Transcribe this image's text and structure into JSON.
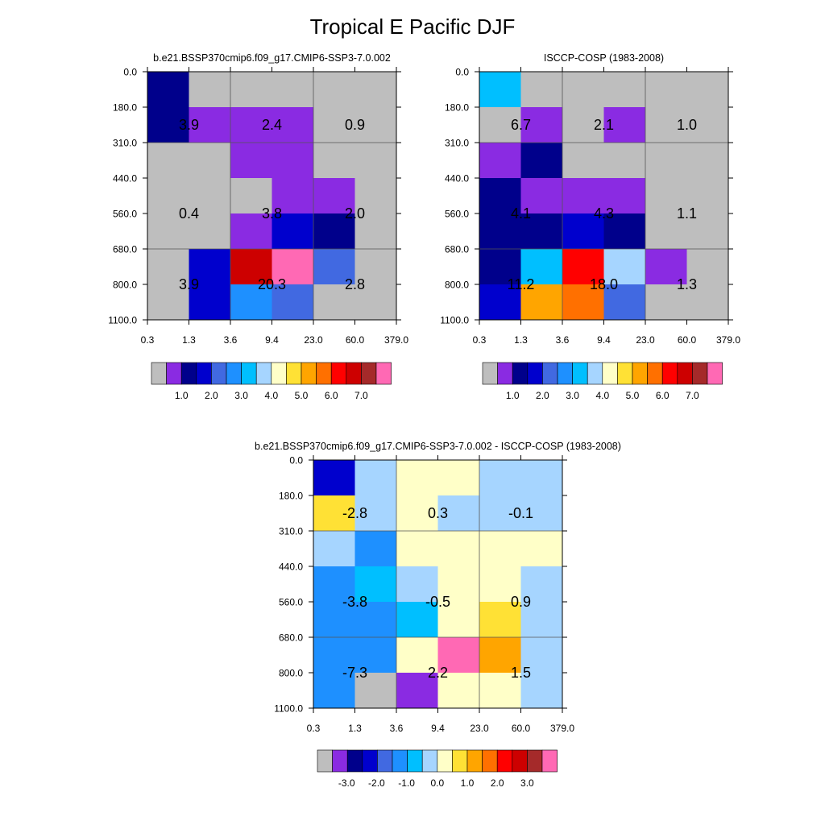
{
  "title": "Tropical E Pacific DJF",
  "palettes": {
    "abs": [
      "#BEBEBE",
      "#8A2BE2",
      "#00008B",
      "#0000CD",
      "#4169E1",
      "#1E90FF",
      "#00BFFF",
      "#A6D5FF",
      "#FFFFC8",
      "#FFE135",
      "#FFA500",
      "#FF7000",
      "#FF0000",
      "#CD0000",
      "#A52A2A",
      "#FF69B4"
    ],
    "diff": [
      "#BEBEBE",
      "#8A2BE2",
      "#00008B",
      "#0000CD",
      "#4169E1",
      "#1E90FF",
      "#00BFFF",
      "#A6D5FF",
      "#FFFFC8",
      "#FFE135",
      "#FFA500",
      "#FF7000",
      "#FF0000",
      "#CD0000",
      "#A52A2A",
      "#FF69B4"
    ]
  },
  "chart_data": [
    {
      "type": "heatmap",
      "title": "b.e21.BSSP370cmip6.f09_g17.CMIP6-SSP3-7.0.002",
      "xticks": [
        "0.3",
        "1.3",
        "3.6",
        "9.4",
        "23.0",
        "60.0",
        "379.0"
      ],
      "yticks": [
        "0.0",
        "180.0",
        "310.0",
        "440.0",
        "560.0",
        "680.0",
        "800.0",
        "1100.0"
      ],
      "palette": "abs",
      "cells": [
        [
          2,
          0,
          0,
          0,
          0,
          0
        ],
        [
          2,
          1,
          1,
          1,
          0,
          0
        ],
        [
          0,
          0,
          1,
          1,
          0,
          0
        ],
        [
          0,
          0,
          0,
          1,
          1,
          0
        ],
        [
          0,
          0,
          1,
          3,
          2,
          0
        ],
        [
          0,
          3,
          13,
          15,
          4,
          0
        ],
        [
          0,
          3,
          5,
          4,
          0,
          0
        ]
      ],
      "labels": [
        [
          "3.9",
          "2.4",
          "0.9"
        ],
        [
          "0.4",
          "3.8",
          "2.0"
        ],
        [
          "3.9",
          "20.3",
          "2.8"
        ]
      ],
      "colorbar_labels": [
        "1.0",
        "2.0",
        "3.0",
        "4.0",
        "5.0",
        "6.0",
        "7.0"
      ]
    },
    {
      "type": "heatmap",
      "title": "ISCCP-COSP (1983-2008)",
      "xticks": [
        "0.3",
        "1.3",
        "3.6",
        "9.4",
        "23.0",
        "60.0",
        "379.0"
      ],
      "yticks": [
        "0.0",
        "180.0",
        "310.0",
        "440.0",
        "560.0",
        "680.0",
        "800.0",
        "1100.0"
      ],
      "palette": "abs",
      "cells": [
        [
          6,
          0,
          0,
          0,
          0,
          0
        ],
        [
          0,
          1,
          0,
          1,
          0,
          0
        ],
        [
          1,
          2,
          0,
          0,
          0,
          0
        ],
        [
          2,
          1,
          1,
          1,
          0,
          0
        ],
        [
          2,
          2,
          3,
          2,
          0,
          0
        ],
        [
          2,
          6,
          12,
          7,
          1,
          0
        ],
        [
          3,
          10,
          11,
          4,
          0,
          0
        ]
      ],
      "labels": [
        [
          "6.7",
          "2.1",
          "1.0"
        ],
        [
          "4.1",
          "4.3",
          "1.1"
        ],
        [
          "11.2",
          "18.0",
          "1.3"
        ]
      ],
      "colorbar_labels": [
        "1.0",
        "2.0",
        "3.0",
        "4.0",
        "5.0",
        "6.0",
        "7.0"
      ]
    },
    {
      "type": "heatmap",
      "title": "b.e21.BSSP370cmip6.f09_g17.CMIP6-SSP3-7.0.002 - ISCCP-COSP (1983-2008)",
      "xticks": [
        "0.3",
        "1.3",
        "3.6",
        "9.4",
        "23.0",
        "60.0",
        "379.0"
      ],
      "yticks": [
        "0.0",
        "180.0",
        "310.0",
        "440.0",
        "560.0",
        "680.0",
        "800.0",
        "1100.0"
      ],
      "palette": "diff",
      "cells": [
        [
          3,
          7,
          8,
          8,
          7,
          7
        ],
        [
          9,
          7,
          8,
          7,
          7,
          7
        ],
        [
          7,
          5,
          8,
          8,
          8,
          8
        ],
        [
          5,
          6,
          7,
          8,
          8,
          7
        ],
        [
          5,
          5,
          6,
          8,
          9,
          7
        ],
        [
          5,
          5,
          8,
          15,
          10,
          7
        ],
        [
          5,
          0,
          1,
          8,
          8,
          7
        ]
      ],
      "labels": [
        [
          "-2.8",
          "0.3",
          "-0.1"
        ],
        [
          "-3.8",
          "-0.5",
          "0.9"
        ],
        [
          "-7.3",
          "2.2",
          "1.5"
        ]
      ],
      "colorbar_labels": [
        "-3.0",
        "-2.0",
        "-1.0",
        "0.0",
        "1.0",
        "2.0",
        "3.0"
      ]
    }
  ]
}
